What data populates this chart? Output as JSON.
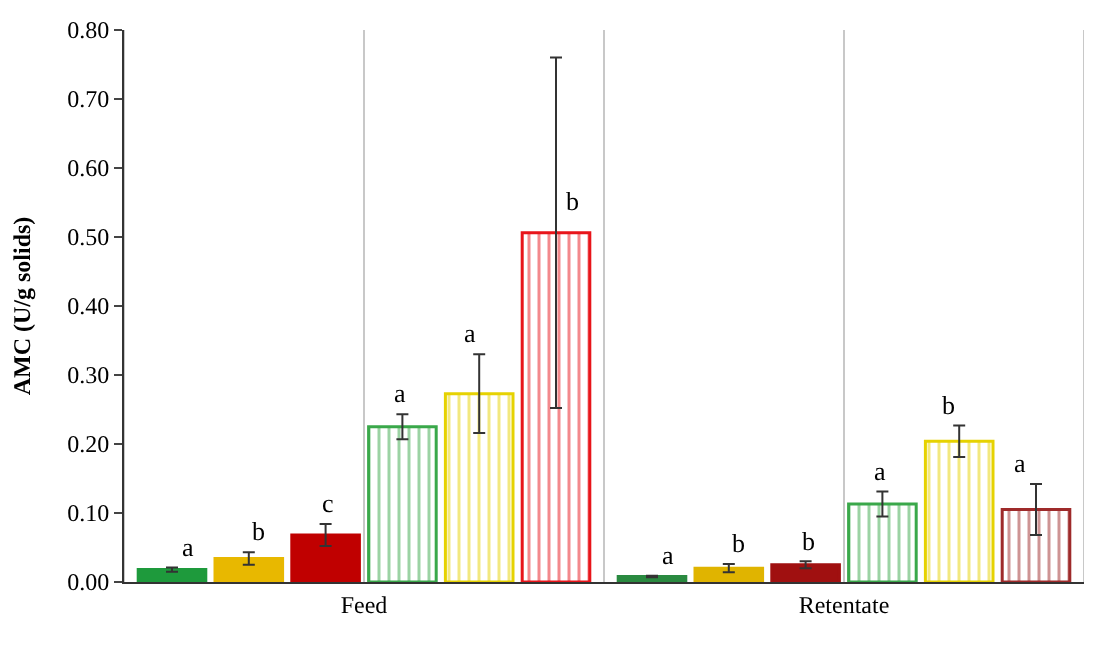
{
  "chart_data": {
    "type": "bar",
    "ylabel": "AMC (U/g solids)",
    "categories": [
      "Feed",
      "Retentate"
    ],
    "series": [
      {
        "colors": [
          "#1e9a3c",
          "#2a8a40"
        ],
        "values": [
          0.018,
          0.008
        ],
        "errors": [
          0.003,
          0.001
        ],
        "value_labels": [
          "a",
          "a"
        ]
      },
      {
        "colors": [
          "#e8b800",
          "#e0b400"
        ],
        "values": [
          0.034,
          0.02
        ],
        "errors": [
          0.009,
          0.006
        ],
        "value_labels": [
          "b",
          "b"
        ]
      },
      {
        "colors": [
          "#c00000",
          "#a01010"
        ],
        "values": [
          0.068,
          0.025
        ],
        "errors": [
          0.016,
          0.005
        ],
        "value_labels": [
          "c",
          "b"
        ]
      },
      {
        "colors": [
          "#3aa84a",
          "#3aa84a"
        ],
        "values": [
          0.225,
          0.113
        ],
        "errors": [
          0.018,
          0.018
        ],
        "value_labels": [
          "a",
          "a"
        ]
      },
      {
        "colors": [
          "#e6d200",
          "#e6d200"
        ],
        "values": [
          0.273,
          0.204
        ],
        "errors": [
          0.057,
          0.023
        ],
        "value_labels": [
          "a",
          "b"
        ]
      },
      {
        "colors": [
          "#e8141a",
          "#9e2a2a"
        ],
        "values": [
          0.506,
          0.105
        ],
        "errors": [
          0.254,
          0.037
        ],
        "value_labels": [
          "b",
          "a"
        ]
      }
    ],
    "ylim": [
      0,
      0.8
    ],
    "yticks": [
      {
        "value": 0,
        "label": "0.00"
      },
      {
        "value": 0.1,
        "label": "0.10"
      },
      {
        "value": 0.2,
        "label": "0.20"
      },
      {
        "value": 0.3,
        "label": "0.30"
      },
      {
        "value": 0.4,
        "label": "0.40"
      },
      {
        "value": 0.5,
        "label": "0.50"
      },
      {
        "value": 0.6,
        "label": "0.60"
      },
      {
        "value": 0.7,
        "label": "0.70"
      },
      {
        "value": 0.8,
        "label": "0.80"
      }
    ],
    "grid": "x"
  }
}
